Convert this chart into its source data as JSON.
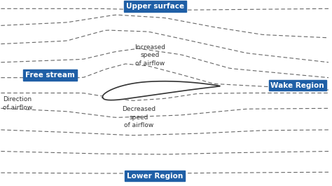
{
  "box_color": "#1f5fa6",
  "box_text_color": "#ffffff",
  "line_color": "#666666",
  "airfoil_color": "#333333",
  "labels": {
    "upper_surface": "Upper surface",
    "free_stream": "Free stream",
    "wake_region": "Wake Region",
    "lower_region": "Lower Region",
    "increased": "Increased\nspeed\nof airflow",
    "decreased": "Decreased\nspeed\nof airflow",
    "direction": "Direction\nof airflow"
  },
  "figsize": [
    4.74,
    2.65
  ],
  "dpi": 100
}
